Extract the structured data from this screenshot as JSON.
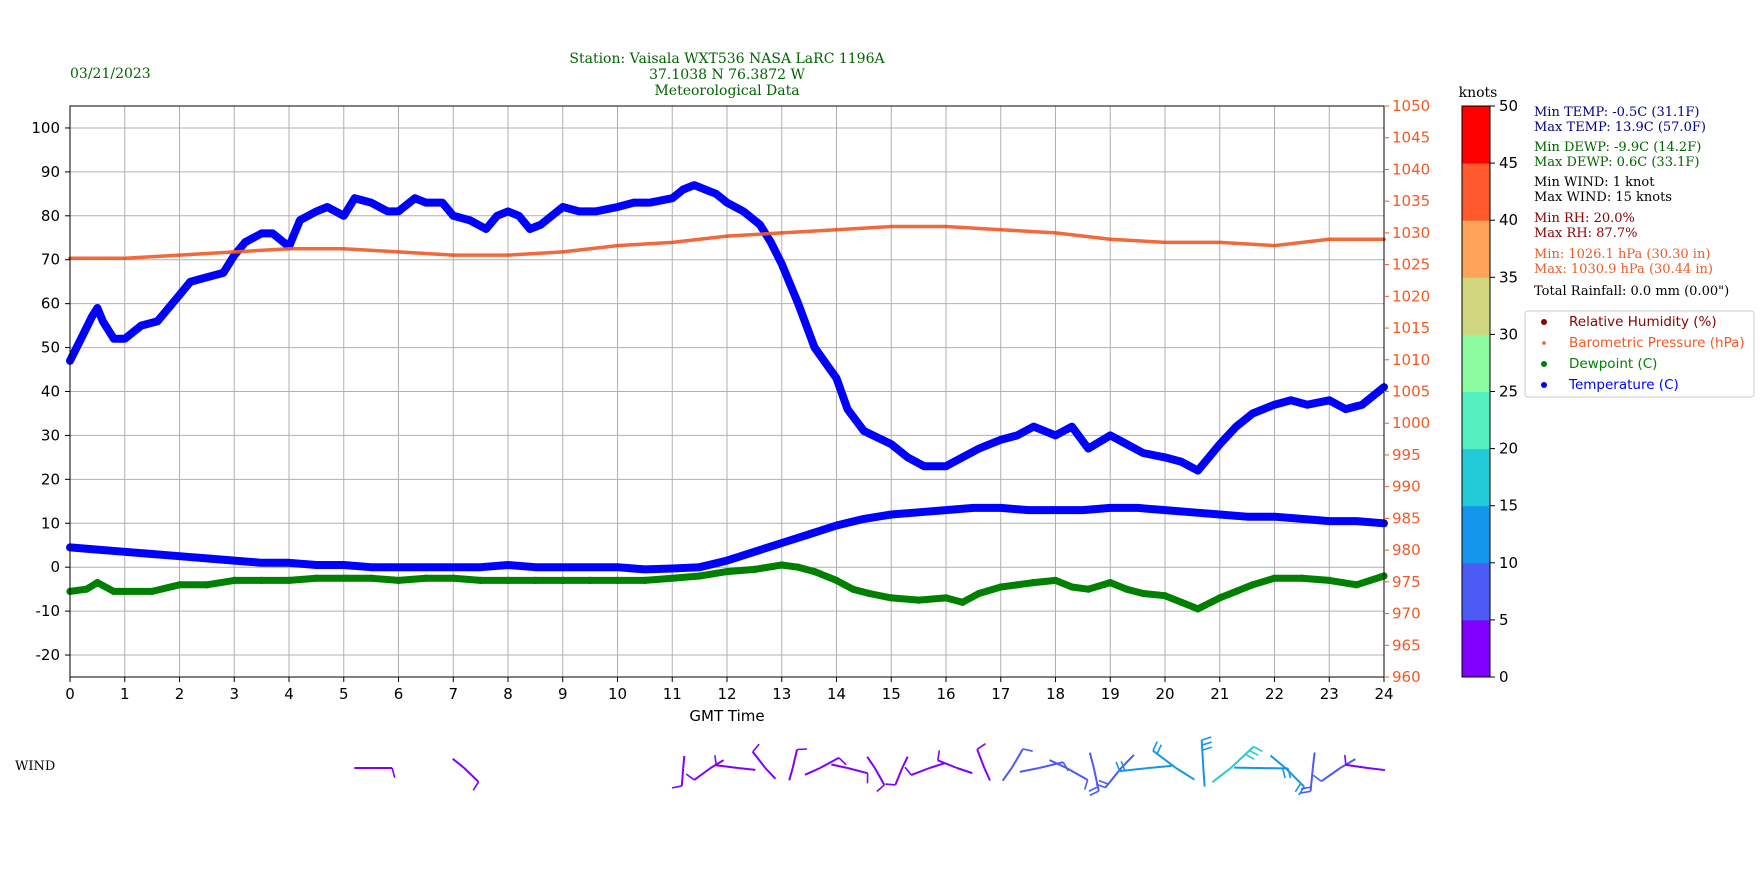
{
  "header": {
    "date": "03/21/2023",
    "title_lines": [
      "Station:  Vaisala WXT536  NASA LaRC 1196A",
      "37.1038 N 76.3872 W",
      "Meteorological Data"
    ]
  },
  "colors": {
    "temperature": "#0000ff",
    "dewpoint": "#008000",
    "humidity": "#8b0000",
    "pressure": "#f05a28",
    "grid": "#b0b0b0",
    "stats_temp": "#00008b",
    "stats_dewp": "#006400",
    "stats_wind": "#000000",
    "stats_rh": "#8b0000",
    "stats_pressure": "#f05a28"
  },
  "stats": [
    {
      "text": "Min TEMP: -0.5C (31.1F)",
      "color": "#00008b"
    },
    {
      "text": "Max TEMP: 13.9C (57.0F)",
      "color": "#00008b"
    },
    {
      "text": "Min DEWP: -9.9C (14.2F)",
      "color": "#006400"
    },
    {
      "text": "Max DEWP: 0.6C (33.1F)",
      "color": "#006400"
    },
    {
      "text": "Min WIND: 1 knot",
      "color": "#000000"
    },
    {
      "text": "Max WIND: 15 knots",
      "color": "#000000"
    },
    {
      "text": "Min RH: 20.0%",
      "color": "#8b0000"
    },
    {
      "text": "Max RH: 87.7%",
      "color": "#8b0000"
    },
    {
      "text": "Min: 1026.1 hPa (30.30 in)",
      "color": "#f05a28"
    },
    {
      "text": "Max: 1030.9 hPa (30.44 in)",
      "color": "#f05a28"
    },
    {
      "text": "Total Rainfall: 0.0 mm (0.00\")",
      "color": "#000000"
    }
  ],
  "wind_label": "WIND",
  "chart_data": {
    "type": "scatter",
    "xlabel": "GMT Time",
    "xlim": [
      0,
      24
    ],
    "x_ticks": [
      0,
      1,
      2,
      3,
      4,
      5,
      6,
      7,
      8,
      9,
      10,
      11,
      12,
      13,
      14,
      15,
      16,
      17,
      18,
      19,
      20,
      21,
      22,
      23,
      24
    ],
    "ylim_left": [
      -25,
      105
    ],
    "y_ticks_left": [
      -20,
      -10,
      0,
      10,
      20,
      30,
      40,
      50,
      60,
      70,
      80,
      90,
      100
    ],
    "ylim_right": [
      960,
      1050
    ],
    "y_ticks_right": [
      960,
      965,
      970,
      975,
      980,
      985,
      990,
      995,
      1000,
      1005,
      1010,
      1015,
      1020,
      1025,
      1030,
      1035,
      1040,
      1045,
      1050
    ],
    "grid": true,
    "legend_position": "right",
    "legend": [
      {
        "name": "Relative Humidity (%)",
        "color": "#8b0000"
      },
      {
        "name": "Barometric Pressure (hPa)",
        "color": "#f05a28"
      },
      {
        "name": "Dewpoint (C)",
        "color": "#008000"
      },
      {
        "name": "Temperature (C)",
        "color": "#0000ff"
      }
    ],
    "series": [
      {
        "name": "Relative Humidity (%)",
        "axis": "left",
        "x": [
          0,
          0.2,
          0.4,
          0.5,
          0.6,
          0.7,
          0.8,
          1,
          1.3,
          1.6,
          2,
          2.2,
          2.5,
          2.8,
          3,
          3.2,
          3.5,
          3.7,
          4,
          4.2,
          4.5,
          4.7,
          5,
          5.2,
          5.5,
          5.8,
          6,
          6.3,
          6.5,
          6.8,
          7,
          7.3,
          7.6,
          7.8,
          8,
          8.2,
          8.4,
          8.6,
          8.8,
          9,
          9.3,
          9.6,
          10,
          10.3,
          10.6,
          11,
          11.2,
          11.4,
          11.6,
          11.8,
          12,
          12.3,
          12.6,
          12.8,
          13,
          13.3,
          13.6,
          14,
          14.2,
          14.5,
          15,
          15.3,
          15.6,
          16,
          16.3,
          16.6,
          17,
          17.3,
          17.6,
          18,
          18.3,
          18.6,
          19,
          19.3,
          19.6,
          20,
          20.3,
          20.6,
          21,
          21.3,
          21.6,
          22,
          22.3,
          22.6,
          23,
          23.3,
          23.6,
          24
        ],
        "y": [
          47,
          52,
          57,
          59,
          56,
          54,
          52,
          52,
          55,
          56,
          62,
          65,
          66,
          67,
          71,
          74,
          76,
          76,
          73,
          79,
          81,
          82,
          80,
          84,
          83,
          81,
          81,
          84,
          83,
          83,
          80,
          79,
          77,
          80,
          81,
          80,
          77,
          78,
          80,
          82,
          81,
          81,
          82,
          83,
          83,
          84,
          86,
          87,
          86,
          85,
          83,
          81,
          78,
          74,
          69,
          60,
          50,
          43,
          36,
          31,
          28,
          25,
          23,
          23,
          25,
          27,
          29,
          30,
          32,
          30,
          32,
          27,
          30,
          28,
          26,
          25,
          24,
          22,
          28,
          32,
          35,
          37,
          38,
          37,
          38,
          36,
          37,
          41
        ]
      },
      {
        "name": "Barometric Pressure (hPa)",
        "axis": "right",
        "x": [
          0,
          1,
          2,
          3,
          4,
          5,
          6,
          7,
          8,
          9,
          10,
          11,
          12,
          13,
          14,
          15,
          16,
          17,
          18,
          19,
          20,
          21,
          22,
          23,
          24
        ],
        "y": [
          1026,
          1026,
          1026.5,
          1027,
          1027.5,
          1027.5,
          1027,
          1026.5,
          1026.5,
          1027,
          1028,
          1028.5,
          1029.5,
          1030,
          1030.5,
          1031,
          1031,
          1030.5,
          1030,
          1029,
          1028.5,
          1028.5,
          1028,
          1029,
          1029
        ]
      },
      {
        "name": "Dewpoint (C)",
        "axis": "left",
        "x": [
          0,
          0.3,
          0.5,
          0.8,
          1,
          1.5,
          2,
          2.5,
          3,
          3.5,
          4,
          4.5,
          5,
          5.5,
          6,
          6.5,
          7,
          7.5,
          8,
          8.5,
          9,
          9.5,
          10,
          10.5,
          11,
          11.5,
          12,
          12.5,
          13,
          13.3,
          13.6,
          14,
          14.3,
          14.6,
          15,
          15.5,
          16,
          16.3,
          16.6,
          17,
          17.3,
          17.6,
          18,
          18.3,
          18.6,
          19,
          19.3,
          19.6,
          20,
          20.3,
          20.6,
          21,
          21.3,
          21.6,
          22,
          22.5,
          23,
          23.5,
          24
        ],
        "y": [
          -5.5,
          -5,
          -3.5,
          -5.5,
          -5.5,
          -5.5,
          -4,
          -4,
          -3,
          -3,
          -3,
          -2.5,
          -2.5,
          -2.5,
          -3,
          -2.5,
          -2.5,
          -3,
          -3,
          -3,
          -3,
          -3,
          -3,
          -3,
          -2.5,
          -2,
          -1,
          -0.5,
          0.5,
          0,
          -1,
          -3,
          -5,
          -6,
          -7,
          -7.5,
          -7,
          -8,
          -6,
          -4.5,
          -4,
          -3.5,
          -3,
          -4.5,
          -5,
          -3.5,
          -5,
          -6,
          -6.5,
          -8,
          -9.5,
          -7,
          -5.5,
          -4,
          -2.5,
          -2.5,
          -3,
          -4,
          -2
        ]
      },
      {
        "name": "Temperature (C)",
        "axis": "left",
        "x": [
          0,
          0.5,
          1,
          1.5,
          2,
          2.5,
          3,
          3.5,
          4,
          4.5,
          5,
          5.5,
          6,
          6.5,
          7,
          7.5,
          8,
          8.5,
          9,
          9.5,
          10,
          10.5,
          11,
          11.5,
          12,
          12.5,
          13,
          13.5,
          14,
          14.5,
          15,
          15.5,
          16,
          16.5,
          17,
          17.5,
          18,
          18.5,
          19,
          19.5,
          20,
          20.5,
          21,
          21.5,
          22,
          22.5,
          23,
          23.5,
          24
        ],
        "y": [
          4.5,
          4,
          3.5,
          3,
          2.5,
          2,
          1.5,
          1,
          1,
          0.5,
          0.5,
          0,
          0,
          0,
          0,
          0,
          0.5,
          0,
          0,
          0,
          0,
          -0.5,
          -0.3,
          0,
          1.5,
          3.5,
          5.5,
          7.5,
          9.5,
          11,
          12,
          12.5,
          13,
          13.5,
          13.5,
          13,
          13,
          13,
          13.5,
          13.5,
          13,
          12.5,
          12,
          11.5,
          11.5,
          11,
          10.5,
          10.5,
          10
        ]
      }
    ],
    "wind_colorbar": {
      "label": "knots",
      "range": [
        0,
        50
      ],
      "ticks": [
        0,
        5,
        10,
        15,
        20,
        25,
        30,
        35,
        40,
        45,
        50
      ],
      "colors": [
        "#8000ff",
        "#4c5bf3",
        "#1496eb",
        "#23cbd9",
        "#55f0c0",
        "#8cfa9e",
        "#d0d77f",
        "#ffa359",
        "#ff5a2e",
        "#ff0000"
      ]
    },
    "wind_barbs": {
      "x": [
        5.5,
        7.2,
        11.2,
        11.7,
        12.2,
        12.7,
        13.2,
        13.7,
        14.2,
        14.7,
        15.2,
        15.7,
        16.2,
        16.7,
        17.2,
        17.7,
        18.2,
        18.7,
        19.2,
        19.7,
        20.2,
        20.7,
        21.2,
        21.7,
        22.2,
        22.7,
        23.2,
        23.7
      ],
      "speed": [
        3,
        3,
        2,
        3,
        4,
        4,
        3,
        4,
        3,
        3,
        2,
        2,
        3,
        4,
        6,
        7,
        7,
        8,
        9,
        11,
        12,
        13,
        15,
        12,
        10,
        8,
        6,
        4
      ]
    }
  }
}
